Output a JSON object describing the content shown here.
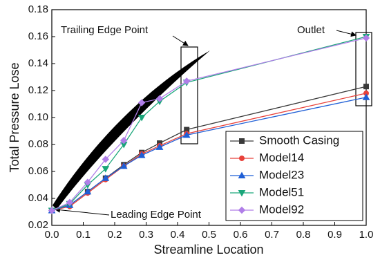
{
  "chart_data": {
    "type": "line",
    "x_label": "Streamline Location",
    "y_label": "Total Pressure Lose",
    "annotations": [
      "Trailing Edge Point",
      "Outlet",
      "Leading Edge Point"
    ],
    "x": [
      0,
      0.057,
      0.114,
      0.171,
      0.229,
      0.286,
      0.343,
      0.429,
      1.0
    ],
    "series": [
      {
        "name": "Smooth Casing",
        "color": "#3a3a3a",
        "marker": "square",
        "values": [
          0.031,
          0.035,
          0.045,
          0.055,
          0.065,
          0.074,
          0.081,
          0.091,
          0.123
        ]
      },
      {
        "name": "Model14",
        "color": "#e8413a",
        "marker": "circle",
        "values": [
          0.031,
          0.034,
          0.044,
          0.054,
          0.064,
          0.073,
          0.079,
          0.088,
          0.118
        ]
      },
      {
        "name": "Model23",
        "color": "#1f5fd6",
        "marker": "triangle-up",
        "values": [
          0.031,
          0.035,
          0.045,
          0.055,
          0.064,
          0.072,
          0.078,
          0.087,
          0.115
        ]
      },
      {
        "name": "Model51",
        "color": "#1aa67a",
        "marker": "triangle-down",
        "values": [
          0.031,
          0.036,
          0.05,
          0.062,
          0.08,
          0.1,
          0.112,
          0.126,
          0.16
        ]
      },
      {
        "name": "Model92",
        "color": "#b07ee8",
        "marker": "diamond",
        "values": [
          0.031,
          0.037,
          0.052,
          0.069,
          0.083,
          0.111,
          0.114,
          0.127,
          0.159
        ]
      }
    ],
    "xlim": [
      0,
      1.0
    ],
    "xticks": [
      {
        "value": 0,
        "label": "0.0"
      },
      0.1,
      0.2,
      0.3,
      0.4,
      0.5,
      0.6,
      0.7,
      0.8,
      0.9,
      {
        "value": 1.0,
        "label": "1.0"
      }
    ],
    "ylim": [
      0.02,
      0.18
    ],
    "yticks": [
      0.02,
      0.04,
      0.06,
      0.08,
      {
        "value": 0.1,
        "label": "0.10"
      },
      0.12,
      0.14,
      0.16,
      0.18
    ],
    "legend": "lower right"
  }
}
